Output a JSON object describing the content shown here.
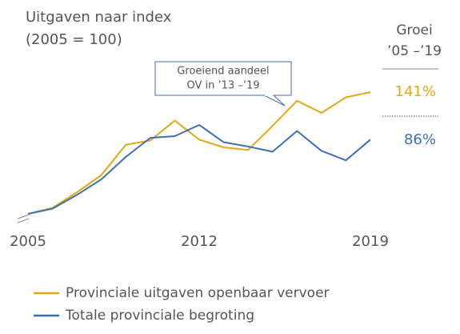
{
  "chart_data": {
    "type": "line",
    "title": [
      "Uitgaven naar index",
      "(2005 = 100)"
    ],
    "annotation": [
      "Groeiend aandeel",
      "OV in ’13 –’19"
    ],
    "growth_header": [
      "Groei",
      "’05 –’19"
    ],
    "x": [
      2005,
      2006,
      2007,
      2008,
      2009,
      2010,
      2011,
      2012,
      2013,
      2014,
      2015,
      2016,
      2017,
      2018,
      2019
    ],
    "xlim": [
      2005,
      2019
    ],
    "xticks": [
      2005,
      2012,
      2019
    ],
    "ylim": [
      95,
      245
    ],
    "series": [
      {
        "name": "Provinciale uitgaven openbaar vervoer",
        "color": "#e0a916",
        "growth_label": "141%",
        "values": [
          100,
          107,
          125,
          145,
          180,
          185,
          208,
          186,
          177,
          174,
          202,
          231,
          217,
          235,
          241
        ]
      },
      {
        "name": "Totale provinciale begroting",
        "color": "#3d6fb6",
        "growth_label": "86%",
        "values": [
          100,
          106,
          122,
          140,
          166,
          188,
          190,
          203,
          183,
          178,
          172,
          196,
          173,
          162,
          186
        ]
      }
    ]
  }
}
